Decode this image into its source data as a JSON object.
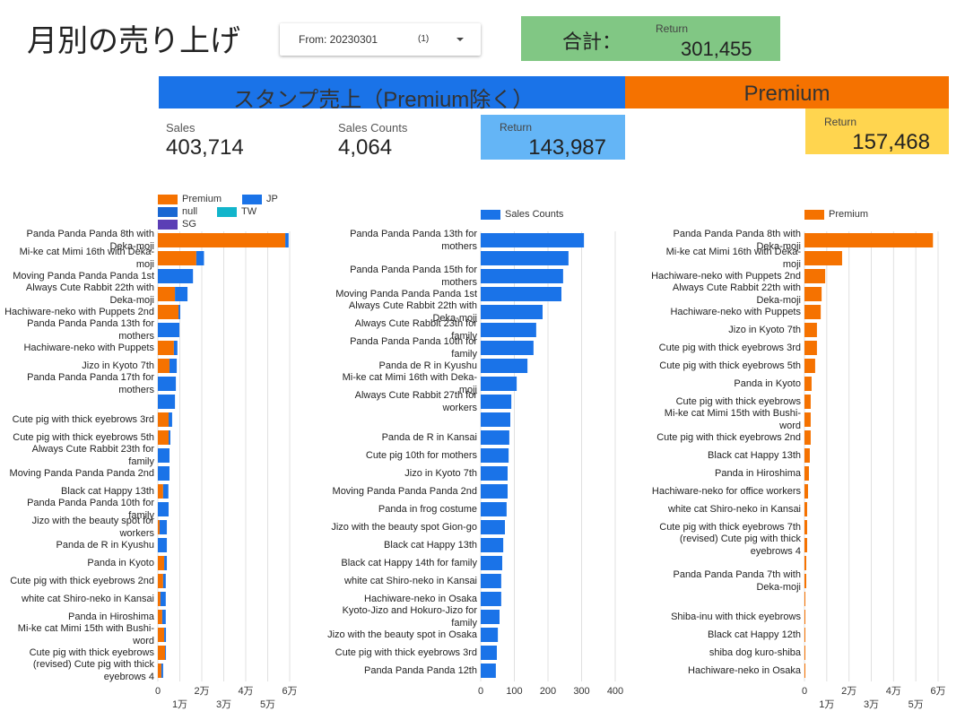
{
  "header": {
    "title": "月別の売り上げ",
    "filter": {
      "label": "From: 20230301",
      "count": "(1)"
    },
    "total": {
      "label": "合計：",
      "sublabel": "Return",
      "value": "301,455"
    }
  },
  "sections": [
    {
      "title": "スタンプ売上（Premium除く）"
    },
    {
      "title": "Premium"
    }
  ],
  "kpis": [
    {
      "label": "Sales",
      "value": "403,714"
    },
    {
      "label": "Sales Counts",
      "value": "4,064"
    },
    {
      "label": "Return",
      "value": "143,987"
    },
    {
      "label": "Return",
      "value": "157,468"
    }
  ],
  "chart_data": [
    {
      "type": "bar",
      "orientation": "horizontal",
      "stacked": true,
      "grid": true,
      "categories": [
        "Panda Panda Panda 8th with Deka-moji",
        "Mi-ke cat Mimi 16th with Deka-moji",
        "Moving Panda Panda Panda 1st",
        "Always Cute Rabbit 22th with Deka-moji",
        "Hachiware-neko with Puppets 2nd",
        "Panda Panda Panda 13th for mothers",
        "Hachiware-neko with Puppets",
        "Jizo in Kyoto 7th",
        "Panda Panda Panda 17th for mothers",
        null,
        "Cute pig with thick eyebrows 3rd",
        "Cute pig with thick eyebrows 5th",
        "Always Cute Rabbit 23th for family",
        "Moving Panda Panda Panda 2nd",
        "Black cat Happy 13th",
        "Panda Panda Panda 10th for family",
        "Jizo with the beauty spot for workers",
        "Panda de R in Kyushu",
        "Panda in Kyoto",
        "Cute pig with thick eyebrows 2nd",
        "white cat Shiro-neko in Kansai",
        "Panda in Hiroshima",
        "Mi-ke cat Mimi 15th with Bushi-word",
        "Cute pig with thick eyebrows",
        "(revised) Cute pig with thick eyebrows 4"
      ],
      "series": [
        {
          "name": "Premium",
          "color": "#f57200",
          "values": [
            58000,
            17500,
            null,
            7800,
            9400,
            null,
            7300,
            5300,
            null,
            null,
            4900,
            4900,
            null,
            null,
            2400,
            null,
            800,
            null,
            2900,
            2400,
            1200,
            2000,
            2900,
            3300,
            1600
          ]
        },
        {
          "name": "JP",
          "color": "#1a73e8",
          "values": [
            1500,
            3500,
            16000,
            5700,
            800,
            9800,
            1600,
            3300,
            8200,
            7800,
            1600,
            800,
            5300,
            5300,
            2400,
            4900,
            3300,
            4100,
            1200,
            1200,
            2400,
            1600,
            800,
            400,
            800
          ]
        },
        {
          "name": "null",
          "color": "#1967d2",
          "values": [
            null,
            null,
            null,
            null,
            null,
            null,
            null,
            null,
            null,
            null,
            null,
            null,
            null,
            null,
            null,
            null,
            null,
            null,
            null,
            null,
            null,
            null,
            null,
            null,
            null
          ]
        },
        {
          "name": "TW",
          "color": "#12b5cb",
          "values": [
            null,
            null,
            null,
            null,
            null,
            null,
            null,
            null,
            null,
            null,
            null,
            null,
            null,
            null,
            null,
            null,
            null,
            null,
            null,
            null,
            null,
            null,
            null,
            null,
            null
          ]
        },
        {
          "name": "SG",
          "color": "#5b3eb5",
          "values": [
            null,
            null,
            null,
            null,
            null,
            null,
            null,
            null,
            null,
            null,
            null,
            null,
            null,
            null,
            null,
            null,
            null,
            null,
            null,
            null,
            null,
            null,
            null,
            null,
            null
          ]
        }
      ],
      "xlim": [
        0,
        60000
      ],
      "xticks": [
        0,
        {
          "value": 10000,
          "label": "1万"
        },
        {
          "value": 20000,
          "label": "2万"
        },
        {
          "value": 30000,
          "label": "3万"
        },
        {
          "value": 40000,
          "label": "4万"
        },
        {
          "value": 50000,
          "label": "5万"
        },
        {
          "value": 60000,
          "label": "6万"
        }
      ]
    },
    {
      "type": "bar",
      "orientation": "horizontal",
      "grid": true,
      "categories": [
        "Panda Panda Panda 13th for mothers",
        null,
        "Panda Panda Panda 15th for mothers",
        "Moving Panda Panda Panda 1st",
        "Always Cute Rabbit 22th with Deka-moji",
        "Always Cute Rabbit 23th for family",
        "Panda Panda Panda 10th for family",
        "Panda de R in Kyushu",
        "Mi-ke cat Mimi 16th with Deka-moji",
        "Always Cute Rabbit 27th for workers",
        null,
        "Panda de R in Kansai",
        "Cute pig 10th for mothers",
        "Jizo in Kyoto 7th",
        "Moving Panda Panda Panda 2nd",
        "Panda in frog costume",
        "Jizo with the beauty spot Gion-go",
        "Black cat Happy 13th",
        "Black cat Happy 14th for family",
        "white cat Shiro-neko in Kansai",
        "Hachiware-neko in Osaka",
        "Kyoto-Jizo and Hokuro-Jizo for family",
        "Jizo with the beauty spot in Osaka",
        "Cute pig with thick eyebrows 3rd",
        "Panda Panda Panda 12th"
      ],
      "series": [
        {
          "name": "Sales Counts",
          "color": "#1a73e8",
          "values": [
            307,
            261,
            245,
            240,
            184,
            165,
            157,
            139,
            107,
            91,
            88,
            85,
            83,
            80,
            80,
            77,
            72,
            67,
            64,
            61,
            61,
            56,
            51,
            48,
            45
          ]
        }
      ],
      "xlim": [
        0,
        400
      ],
      "xticks": [
        0,
        100,
        200,
        300,
        400
      ]
    },
    {
      "type": "bar",
      "orientation": "horizontal",
      "grid": true,
      "categories": [
        "Panda Panda Panda 8th with Deka-moji",
        "Mi-ke cat Mimi 16th with Deka-moji",
        "Hachiware-neko with Puppets 2nd",
        "Always Cute Rabbit 22th with Deka-moji",
        "Hachiware-neko with Puppets",
        "Jizo in Kyoto 7th",
        "Cute pig with thick eyebrows 3rd",
        "Cute pig with thick eyebrows 5th",
        "Panda in Kyoto",
        "Cute pig with thick eyebrows",
        "Mi-ke cat Mimi 15th with Bushi-word",
        "Cute pig with thick eyebrows 2nd",
        "Black cat Happy 13th",
        "Panda in Hiroshima",
        "Hachiware-neko for office workers",
        "white cat Shiro-neko in Kansai",
        "Cute pig with thick eyebrows 7th",
        "(revised) Cute pig with thick eyebrows 4",
        null,
        "Panda Panda Panda 7th with Deka-moji",
        null,
        "Shiba-inu with thick eyebrows",
        "Black cat Happy 12th",
        "shiba dog kuro-shiba",
        "Hachiware-neko in Osaka"
      ],
      "series": [
        {
          "name": "Premium",
          "color": "#f57200",
          "values": [
            57700,
            16900,
            9300,
            7700,
            7300,
            5600,
            5600,
            4800,
            3200,
            2800,
            2800,
            2800,
            2400,
            2000,
            1600,
            1200,
            1200,
            1200,
            800,
            800,
            400,
            400,
            400,
            400,
            400
          ]
        }
      ],
      "xlim": [
        0,
        60000
      ],
      "xticks": [
        0,
        {
          "value": 10000,
          "label": "1万"
        },
        {
          "value": 20000,
          "label": "2万"
        },
        {
          "value": 30000,
          "label": "3万"
        },
        {
          "value": 40000,
          "label": "4万"
        },
        {
          "value": 50000,
          "label": "5万"
        },
        {
          "value": 60000,
          "label": "6万"
        }
      ]
    }
  ]
}
